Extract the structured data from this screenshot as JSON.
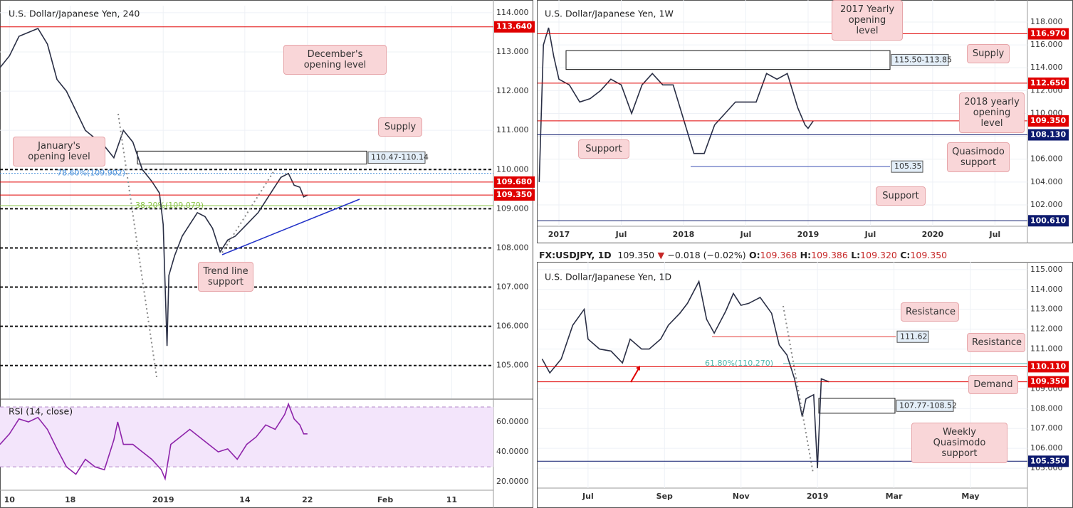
{
  "chart_data": [
    {
      "type": "line",
      "title": "U.S. Dollar/Japanese Yen, 240",
      "color": "#2a2f45",
      "grid": true,
      "x": [
        0,
        5,
        10,
        15,
        20,
        25,
        30,
        35,
        40,
        45,
        50,
        55,
        60,
        65,
        70,
        75,
        80,
        84,
        86,
        88,
        89,
        92,
        96,
        100,
        104,
        108,
        112,
        116,
        120,
        124,
        128,
        132,
        136,
        140,
        144,
        148,
        152,
        155,
        158,
        160,
        162
      ],
      "values": [
        112.6,
        112.9,
        113.4,
        113.5,
        113.6,
        113.2,
        112.3,
        112.0,
        111.5,
        111.0,
        110.8,
        110.6,
        110.3,
        111.0,
        110.7,
        110.0,
        109.7,
        109.4,
        108.6,
        105.5,
        107.3,
        107.8,
        108.3,
        108.6,
        108.9,
        108.8,
        108.5,
        107.9,
        108.2,
        108.3,
        108.5,
        108.7,
        108.9,
        109.2,
        109.5,
        109.8,
        109.9,
        109.6,
        109.55,
        109.3,
        109.35
      ],
      "xlim": [
        0,
        260
      ],
      "ylim": [
        104.16,
        114.18
      ],
      "xticks": [
        {
          "value": 5,
          "label": "10"
        },
        {
          "value": 37,
          "label": "18"
        },
        {
          "value": 86,
          "label": "2019"
        },
        {
          "value": 129,
          "label": "14"
        },
        {
          "value": 162,
          "label": "22"
        },
        {
          "value": 203,
          "label": "Feb"
        },
        {
          "value": 238,
          "label": "11"
        }
      ],
      "yticks": [
        {
          "value": 114,
          "label": "114.000"
        },
        {
          "value": 113,
          "label": "113.000"
        },
        {
          "value": 112,
          "label": "112.000"
        },
        {
          "value": 111,
          "label": "111.000"
        },
        {
          "value": 110,
          "label": "110.000"
        },
        {
          "value": 109,
          "label": "109.000"
        },
        {
          "value": 108,
          "label": "108.000"
        },
        {
          "value": 107,
          "label": "107.000"
        },
        {
          "value": 106,
          "label": "106.000"
        },
        {
          "value": 105,
          "label": "105.000"
        }
      ],
      "dashed_levels": [
        110,
        109,
        108,
        107,
        106,
        105
      ],
      "levels": [
        {
          "value": 113.64,
          "label": "113.640",
          "color": "#e00000"
        },
        {
          "value": 109.68,
          "label": "109.680",
          "color": "#e00000"
        },
        {
          "value": 109.35,
          "label": "109.350",
          "color": "#e00000"
        }
      ],
      "zones": [
        {
          "top": 110.47,
          "bottom": 110.14,
          "label": "110.47-110.14"
        }
      ],
      "fibs": [
        {
          "value": 109.902,
          "label": "78.60%(109.902)",
          "color": "#4a90d9"
        },
        {
          "value": 109.079,
          "label": "38.20%(109.079)",
          "color": "#8bc34a"
        }
      ],
      "annotations": [
        "December's opening level",
        "Supply",
        "January's opening level",
        "Trend line support"
      ]
    },
    {
      "type": "line",
      "title": "RSI (14, close)",
      "color": "#8e24aa",
      "x": [
        0,
        5,
        10,
        15,
        20,
        25,
        30,
        35,
        40,
        45,
        50,
        55,
        60,
        62,
        65,
        70,
        75,
        80,
        85,
        87,
        90,
        95,
        100,
        105,
        110,
        115,
        120,
        125,
        130,
        135,
        140,
        145,
        150,
        152,
        155,
        158,
        160,
        162
      ],
      "values": [
        45,
        52,
        62,
        60,
        63,
        55,
        42,
        30,
        25,
        35,
        30,
        28,
        48,
        60,
        45,
        45,
        40,
        35,
        28,
        22,
        45,
        50,
        55,
        50,
        45,
        40,
        42,
        35,
        45,
        50,
        58,
        55,
        65,
        72,
        62,
        58,
        52,
        52
      ],
      "xlim": [
        0,
        260
      ],
      "ylim": [
        14.8,
        74.3
      ],
      "bands": [
        30,
        70
      ],
      "yticks": [
        {
          "value": 20,
          "label": "20.0000"
        },
        {
          "value": 40,
          "label": "40.0000"
        },
        {
          "value": 60,
          "label": "60.0000"
        }
      ]
    },
    {
      "type": "line",
      "title": "U.S. Dollar/Japanese Yen, 1W",
      "color": "#2a2f45",
      "grid": true,
      "x": [
        -0.9,
        -0.5,
        0,
        0.5,
        1,
        2,
        3,
        4,
        5,
        6,
        7,
        8,
        9,
        10,
        11,
        12,
        13,
        14,
        15,
        16,
        17,
        18,
        19,
        20,
        21,
        22,
        23,
        24,
        24.7,
        25,
        25.5
      ],
      "values": [
        104,
        116,
        117.5,
        115,
        113,
        112.5,
        111,
        111.3,
        112,
        113,
        112.5,
        110,
        112.5,
        113.5,
        112.5,
        112.5,
        109.5,
        106.5,
        106.5,
        109,
        110,
        111,
        111,
        111,
        113.5,
        113,
        113.5,
        110.5,
        109,
        108.7,
        109.35
      ],
      "xlim": [
        -1.06,
        46.13
      ],
      "ylim": [
        100.13,
        119.93
      ],
      "xticks": [
        {
          "value": 1,
          "label": "2017"
        },
        {
          "value": 7,
          "label": "Jul"
        },
        {
          "value": 13,
          "label": "2018"
        },
        {
          "value": 19,
          "label": "Jul"
        },
        {
          "value": 25,
          "label": "2019"
        },
        {
          "value": 31,
          "label": "Jul"
        },
        {
          "value": 37,
          "label": "2020"
        },
        {
          "value": 43,
          "label": "Jul"
        }
      ],
      "yticks": [
        {
          "value": 102,
          "label": "102.000"
        },
        {
          "value": 104,
          "label": "104.000"
        },
        {
          "value": 106,
          "label": "106.000"
        },
        {
          "value": 108,
          "label": "108.000"
        },
        {
          "value": 110,
          "label": "110.000"
        },
        {
          "value": 112,
          "label": "112.000"
        },
        {
          "value": 114,
          "label": "114.000"
        },
        {
          "value": 116,
          "label": "116.000"
        },
        {
          "value": 118,
          "label": "118.000"
        }
      ],
      "levels": [
        {
          "value": 116.97,
          "label": "116.970",
          "color": "#e00000"
        },
        {
          "value": 112.65,
          "label": "112.650",
          "color": "#e00000"
        },
        {
          "value": 109.35,
          "label": "109.350",
          "color": "#e00000"
        },
        {
          "value": 108.13,
          "label": "108.130",
          "color": "#0d1a6e"
        },
        {
          "value": 100.61,
          "label": "100.610",
          "color": "#0d1a6e"
        }
      ],
      "marked_levels": [
        {
          "value": 105.35,
          "label": "105.35",
          "color": "#3f51b5"
        }
      ],
      "zones": [
        {
          "top": 115.5,
          "bottom": 113.85,
          "label": "115.50-113.85"
        }
      ],
      "annotations": [
        "2017 Yearly opening level",
        "Supply",
        "2018 yearly opening level",
        "Support",
        "Quasimodo support",
        "Support"
      ]
    },
    {
      "type": "line",
      "title": "U.S. Dollar/Japanese Yen, 1D",
      "color": "#2a2f45",
      "grid": true,
      "quote": {
        "symbol": "FX:USDJPY, 1D",
        "price": "109.350",
        "arrow": "▼",
        "change": "−0.018 (−0.02%)",
        "ohlc": [
          {
            "label": "O:",
            "value": "109.368"
          },
          {
            "label": "H:",
            "value": "109.386"
          },
          {
            "label": "L:",
            "value": "109.320"
          },
          {
            "label": "C:",
            "value": "109.350"
          }
        ]
      },
      "x": [
        5.8,
        6,
        6.3,
        6.6,
        6.9,
        7,
        7.3,
        7.6,
        7.9,
        8.1,
        8.4,
        8.6,
        8.9,
        9.1,
        9.4,
        9.6,
        9.9,
        10.1,
        10.3,
        10.6,
        10.8,
        11,
        11.2,
        11.5,
        11.8,
        12,
        12.2,
        12.4,
        12.6,
        12.7,
        12.9,
        13.0,
        13.1,
        13.3
      ],
      "values": [
        110.5,
        109.8,
        110.5,
        112.2,
        113,
        111.5,
        111,
        110.9,
        110.3,
        111.5,
        111,
        111,
        111.5,
        112.2,
        112.8,
        113.3,
        114.4,
        112.5,
        111.8,
        112.9,
        113.8,
        113.2,
        113.3,
        113.6,
        112.8,
        111.2,
        110.7,
        109.5,
        107.6,
        108.5,
        108.7,
        105.0,
        109.5,
        109.35
      ],
      "xlim": [
        5.68,
        18.49
      ],
      "ylim": [
        104.0,
        115.39
      ],
      "xticks": [
        {
          "value": 7,
          "label": "Jul"
        },
        {
          "value": 9,
          "label": "Sep"
        },
        {
          "value": 11,
          "label": "Nov"
        },
        {
          "value": 13,
          "label": "2019"
        },
        {
          "value": 15,
          "label": "Mar"
        },
        {
          "value": 17,
          "label": "May"
        }
      ],
      "yticks": [
        {
          "value": 105,
          "label": "105.000"
        },
        {
          "value": 106,
          "label": "106.000"
        },
        {
          "value": 107,
          "label": "107.000"
        },
        {
          "value": 108,
          "label": "108.000"
        },
        {
          "value": 109,
          "label": "109.000"
        },
        {
          "value": 110,
          "label": "110.000"
        },
        {
          "value": 111,
          "label": "111.000"
        },
        {
          "value": 112,
          "label": "112.000"
        },
        {
          "value": 113,
          "label": "113.000"
        },
        {
          "value": 114,
          "label": "114.000"
        },
        {
          "value": 115,
          "label": "115.000"
        }
      ],
      "levels": [
        {
          "value": 110.11,
          "label": "110.110",
          "color": "#e00000"
        },
        {
          "value": 109.35,
          "label": "109.350",
          "color": "#e00000"
        },
        {
          "value": 105.35,
          "label": "105.350",
          "color": "#0d1a6e"
        }
      ],
      "marked_levels": [
        {
          "value": 111.62,
          "label": "111.62",
          "color": "#e53935"
        }
      ],
      "zones": [
        {
          "top": 108.52,
          "bottom": 107.77,
          "label": "107.77-108.52"
        }
      ],
      "fibs": [
        {
          "value": 110.27,
          "label": "61.80%(110.270)",
          "color": "#4db6ac"
        }
      ],
      "annotations": [
        "Resistance",
        "Resistance",
        "Demand",
        "Weekly Quasimodo support"
      ]
    }
  ]
}
